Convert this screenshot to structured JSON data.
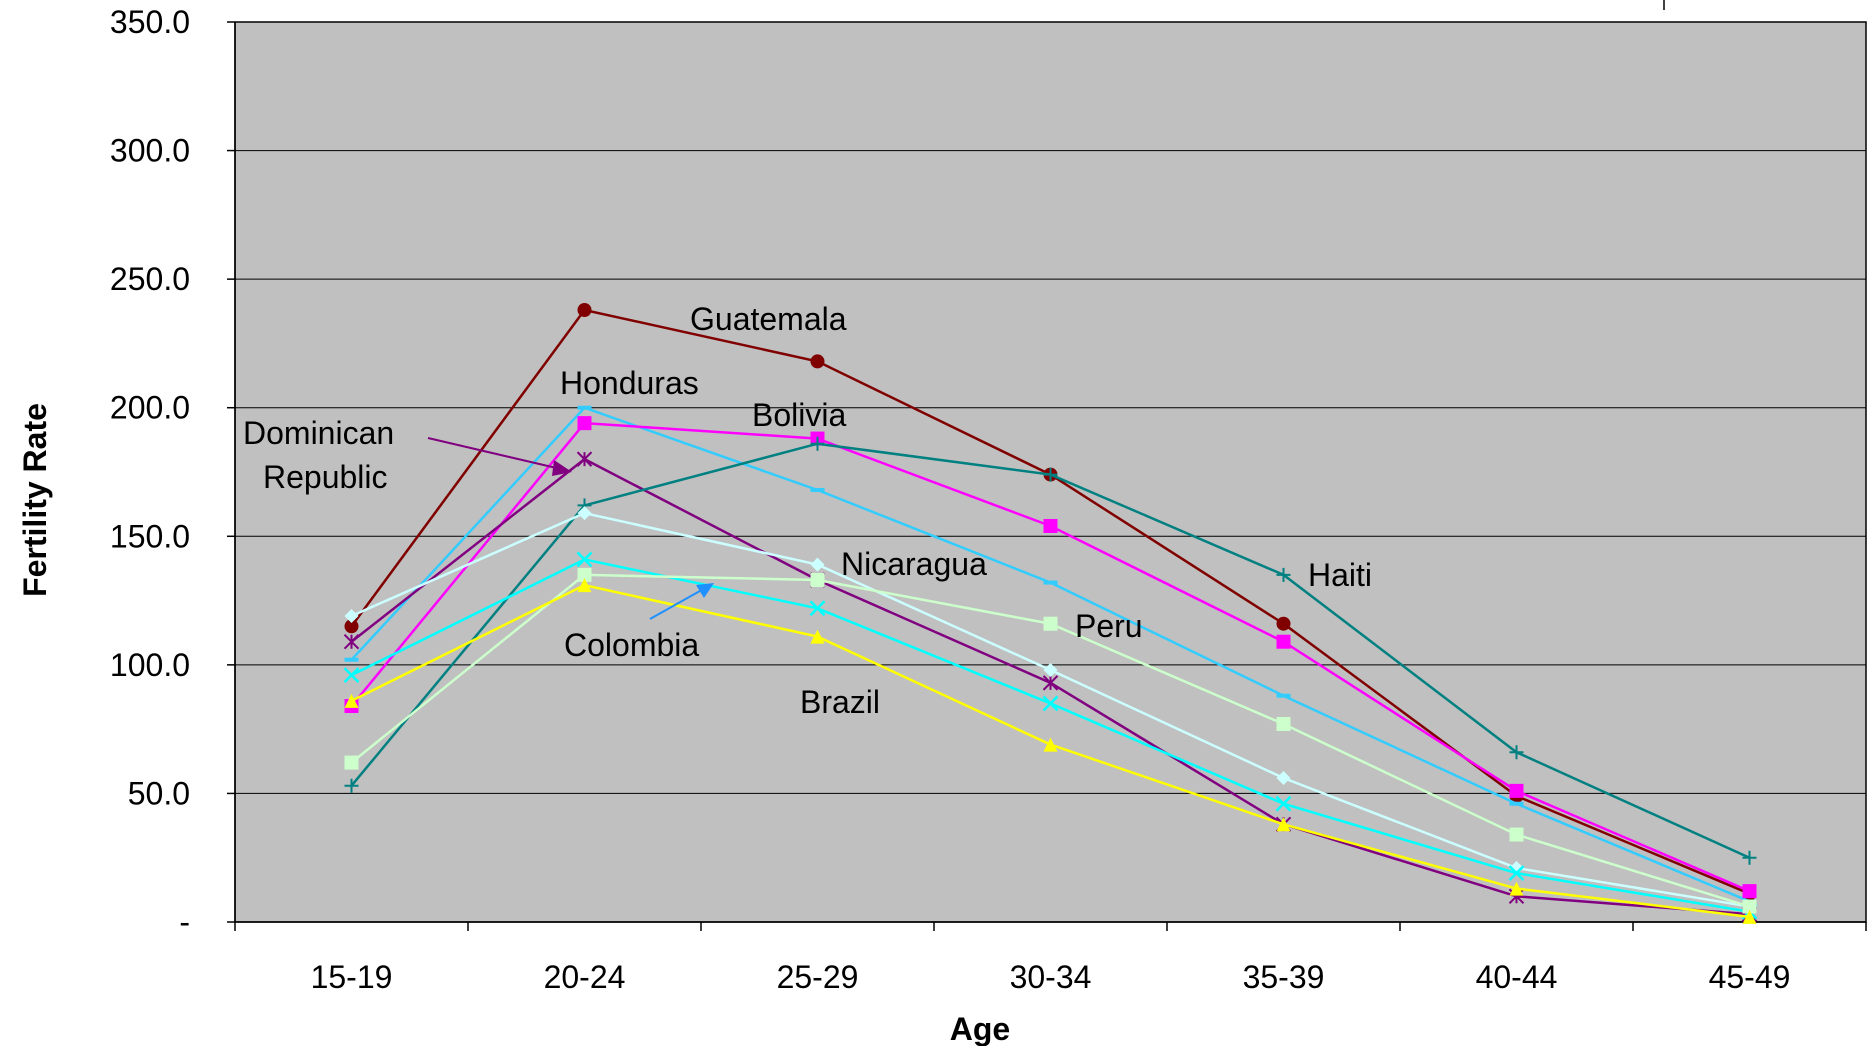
{
  "chart_data": {
    "type": "line",
    "title": "",
    "xlabel": "Age",
    "ylabel": "Fertility Rate",
    "categories": [
      "15-19",
      "20-24",
      "25-29",
      "30-34",
      "35-39",
      "40-44",
      "45-49"
    ],
    "ylim": [
      0,
      350
    ],
    "yticks": [
      0,
      50,
      100,
      150,
      200,
      250,
      300,
      350
    ],
    "ytick_labels": [
      "-",
      "50.0",
      "100.0",
      "150.0",
      "200.0",
      "250.0",
      "300.0",
      "350.0"
    ],
    "grid": "horizontal",
    "legend": "none",
    "plot_background": "#c0c0c0",
    "series": [
      {
        "name": "Guatemala",
        "color": "#800000",
        "marker": "circle",
        "values": [
          115,
          238,
          218,
          174,
          116,
          49,
          11
        ]
      },
      {
        "name": "Honduras",
        "color": "#33ccff",
        "marker": "dash",
        "values": [
          102,
          200,
          168,
          132,
          88,
          46,
          8
        ]
      },
      {
        "name": "Bolivia",
        "color": "#ff00ff",
        "marker": "square",
        "values": [
          84,
          194,
          188,
          154,
          109,
          51,
          12
        ]
      },
      {
        "name": "Dominican Republic",
        "color": "#800080",
        "marker": "star",
        "values": [
          109,
          180,
          133,
          93,
          38,
          10,
          3
        ]
      },
      {
        "name": "Haiti",
        "color": "#008080",
        "marker": "plus",
        "values": [
          53,
          162,
          186,
          174,
          135,
          66,
          25
        ]
      },
      {
        "name": "Nicaragua",
        "color": "#ccffff",
        "marker": "diamond",
        "values": [
          119,
          159,
          139,
          98,
          56,
          21,
          6
        ]
      },
      {
        "name": "Colombia",
        "color": "#00ffff",
        "marker": "x",
        "values": [
          96,
          141,
          122,
          85,
          46,
          19,
          4
        ]
      },
      {
        "name": "Peru",
        "color": "#ccffcc",
        "marker": "square",
        "values": [
          62,
          135,
          133,
          116,
          77,
          34,
          6
        ]
      },
      {
        "name": "Brazil",
        "color": "#ffff00",
        "marker": "triangle",
        "values": [
          86,
          131,
          111,
          69,
          38,
          13,
          2
        ]
      }
    ],
    "annotations": [
      {
        "text": "Guatemala"
      },
      {
        "text": "Honduras"
      },
      {
        "text": "Bolivia"
      },
      {
        "text": "Dominican"
      },
      {
        "text": "Republic"
      },
      {
        "text": "Nicaragua"
      },
      {
        "text": "Haiti"
      },
      {
        "text": "Peru"
      },
      {
        "text": "Colombia"
      },
      {
        "text": "Brazil"
      }
    ]
  }
}
